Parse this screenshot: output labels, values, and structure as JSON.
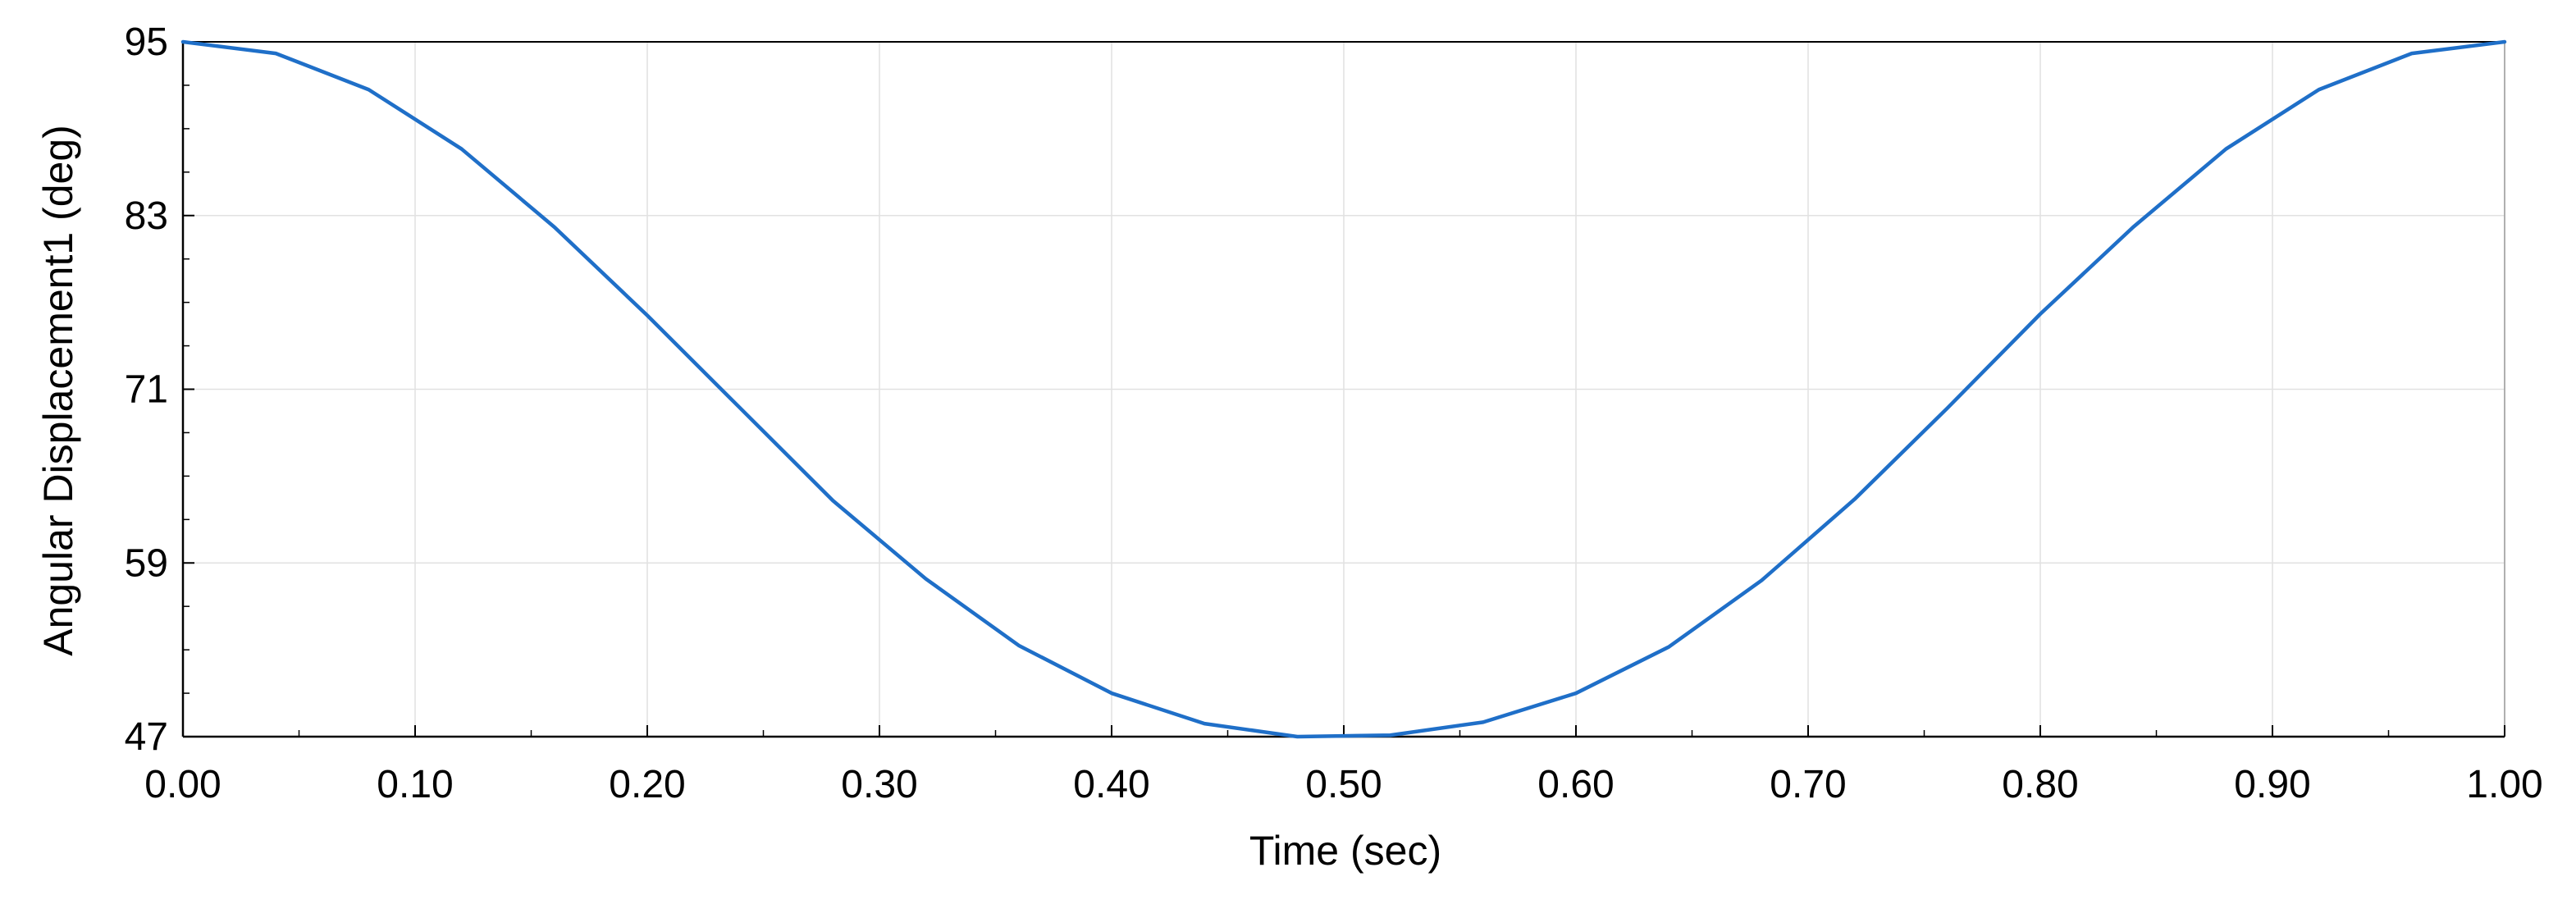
{
  "chart_data": {
    "type": "line",
    "title": "",
    "xlabel": "Time (sec)",
    "ylabel": "Angular Displacement1 (deg)",
    "xlim": [
      0.0,
      1.0
    ],
    "ylim": [
      47,
      95
    ],
    "x_ticks": [
      "0.00",
      "0.10",
      "0.20",
      "0.30",
      "0.40",
      "0.50",
      "0.60",
      "0.70",
      "0.80",
      "0.90",
      "1.00"
    ],
    "y_ticks": [
      "47",
      "59",
      "71",
      "83",
      "95"
    ],
    "grid": true,
    "legend": "none",
    "series": [
      {
        "color": "#1f6fc8",
        "x": [
          0.0,
          0.04,
          0.08,
          0.12,
          0.16,
          0.2,
          0.24,
          0.28,
          0.32,
          0.36,
          0.4,
          0.44,
          0.48,
          0.52,
          0.56,
          0.6,
          0.64,
          0.68,
          0.72,
          0.76,
          0.8,
          0.84,
          0.88,
          0.92,
          0.96,
          1.0
        ],
        "y": [
          95.0,
          94.2,
          91.7,
          87.6,
          82.2,
          76.1,
          69.7,
          63.3,
          57.9,
          53.3,
          50.0,
          47.9,
          47.0,
          47.1,
          48.0,
          50.0,
          53.2,
          57.8,
          63.4,
          69.7,
          76.2,
          82.2,
          87.6,
          91.7,
          94.2,
          95.0
        ]
      }
    ]
  },
  "colors": {
    "series": "#1f6fc8",
    "grid": "#e1e1e1",
    "axis": "#000000"
  }
}
